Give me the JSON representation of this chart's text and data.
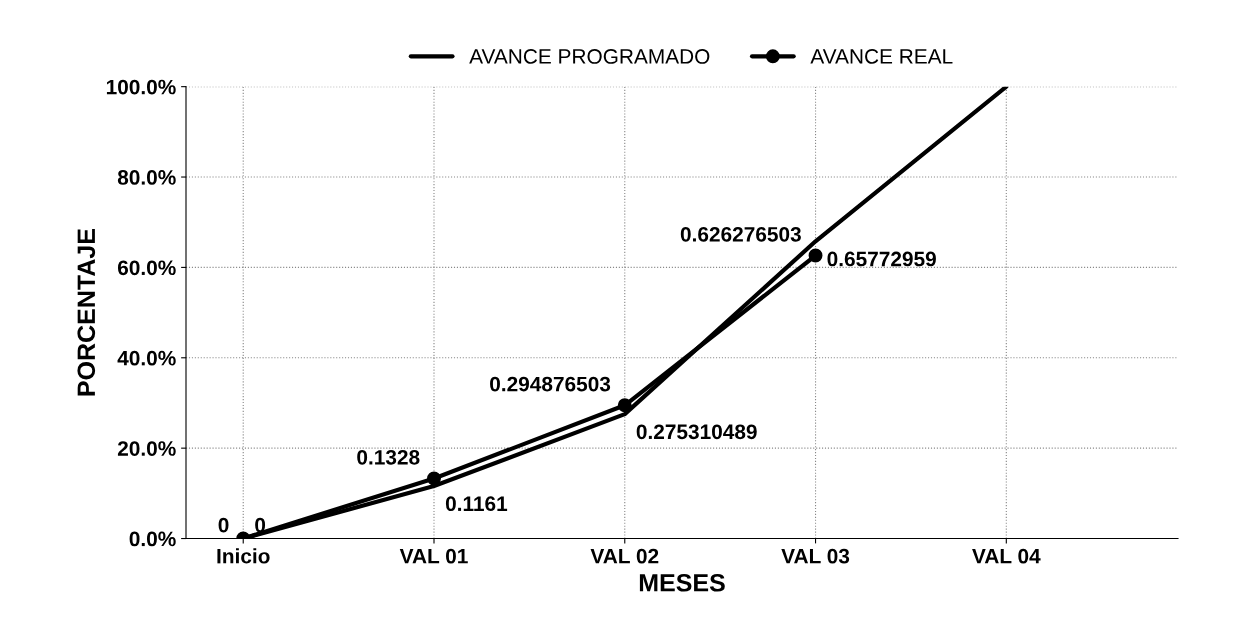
{
  "chart_data": {
    "type": "line",
    "xlabel": "MESES",
    "ylabel": "PORCENTAJE",
    "categories": [
      "Inicio",
      "VAL 01",
      "VAL 02",
      "VAL 03",
      "VAL 04"
    ],
    "series": [
      {
        "name": "AVANCE PROGRAMADO",
        "color": "#000000",
        "marker": "none",
        "values": [
          0,
          0.1161,
          0.275310489,
          0.65772959,
          1.0
        ],
        "value_labels": [
          "0",
          "0.1161",
          "0.275310489",
          "0.65772959",
          null
        ]
      },
      {
        "name": "AVANCE REAL",
        "color": "#000000",
        "marker": "circle",
        "values": [
          0,
          0.1328,
          0.294876503,
          0.626276503,
          null
        ],
        "value_labels": [
          "0",
          "0.1328",
          "0.294876503",
          "0.626276503",
          null
        ]
      }
    ],
    "ylim": [
      0,
      1.0
    ],
    "yticks": [
      {
        "value": 0,
        "label": "0.0%"
      },
      {
        "value": 0.2,
        "label": "20.0%"
      },
      {
        "value": 0.4,
        "label": "40.0%"
      },
      {
        "value": 0.6,
        "label": "60.0%"
      },
      {
        "value": 0.8,
        "label": "80.0%"
      },
      {
        "value": 1.0,
        "label": "100.0%"
      }
    ],
    "grid": true,
    "legend": "top",
    "line_style": "solid"
  }
}
